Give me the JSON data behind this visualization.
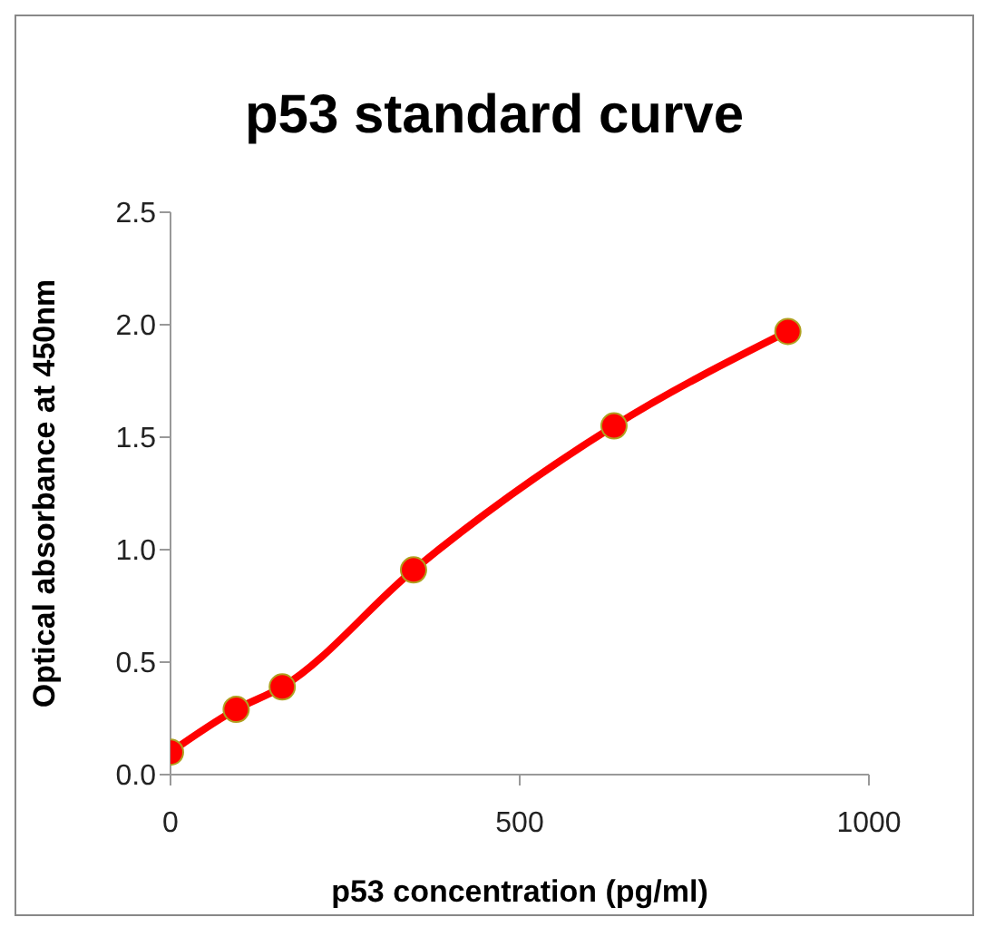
{
  "chart_data": {
    "type": "line",
    "title": "p53 standard curve",
    "xlabel": "p53 concentration (pg/ml)",
    "ylabel": "Optical absorbance at 450nm",
    "x": [
      0,
      94,
      160,
      348,
      635,
      884
    ],
    "series": [
      {
        "color": "#ff0000",
        "values": [
          0.1,
          0.29,
          0.39,
          0.91,
          1.55,
          1.97
        ]
      }
    ],
    "xlim": [
      0,
      1000
    ],
    "xticks": [
      0,
      500,
      1000
    ],
    "ylim": [
      0,
      2.5
    ],
    "yticks": [
      {
        "value": 0,
        "label": "0.0"
      },
      {
        "value": 0.5,
        "label": "0.5"
      },
      {
        "value": 1,
        "label": "1.0"
      },
      {
        "value": 1.5,
        "label": "1.5"
      },
      {
        "value": 2,
        "label": "2.0"
      },
      {
        "value": 2.5,
        "label": "2.5"
      }
    ],
    "marker": "circle",
    "line_style": "solid"
  }
}
